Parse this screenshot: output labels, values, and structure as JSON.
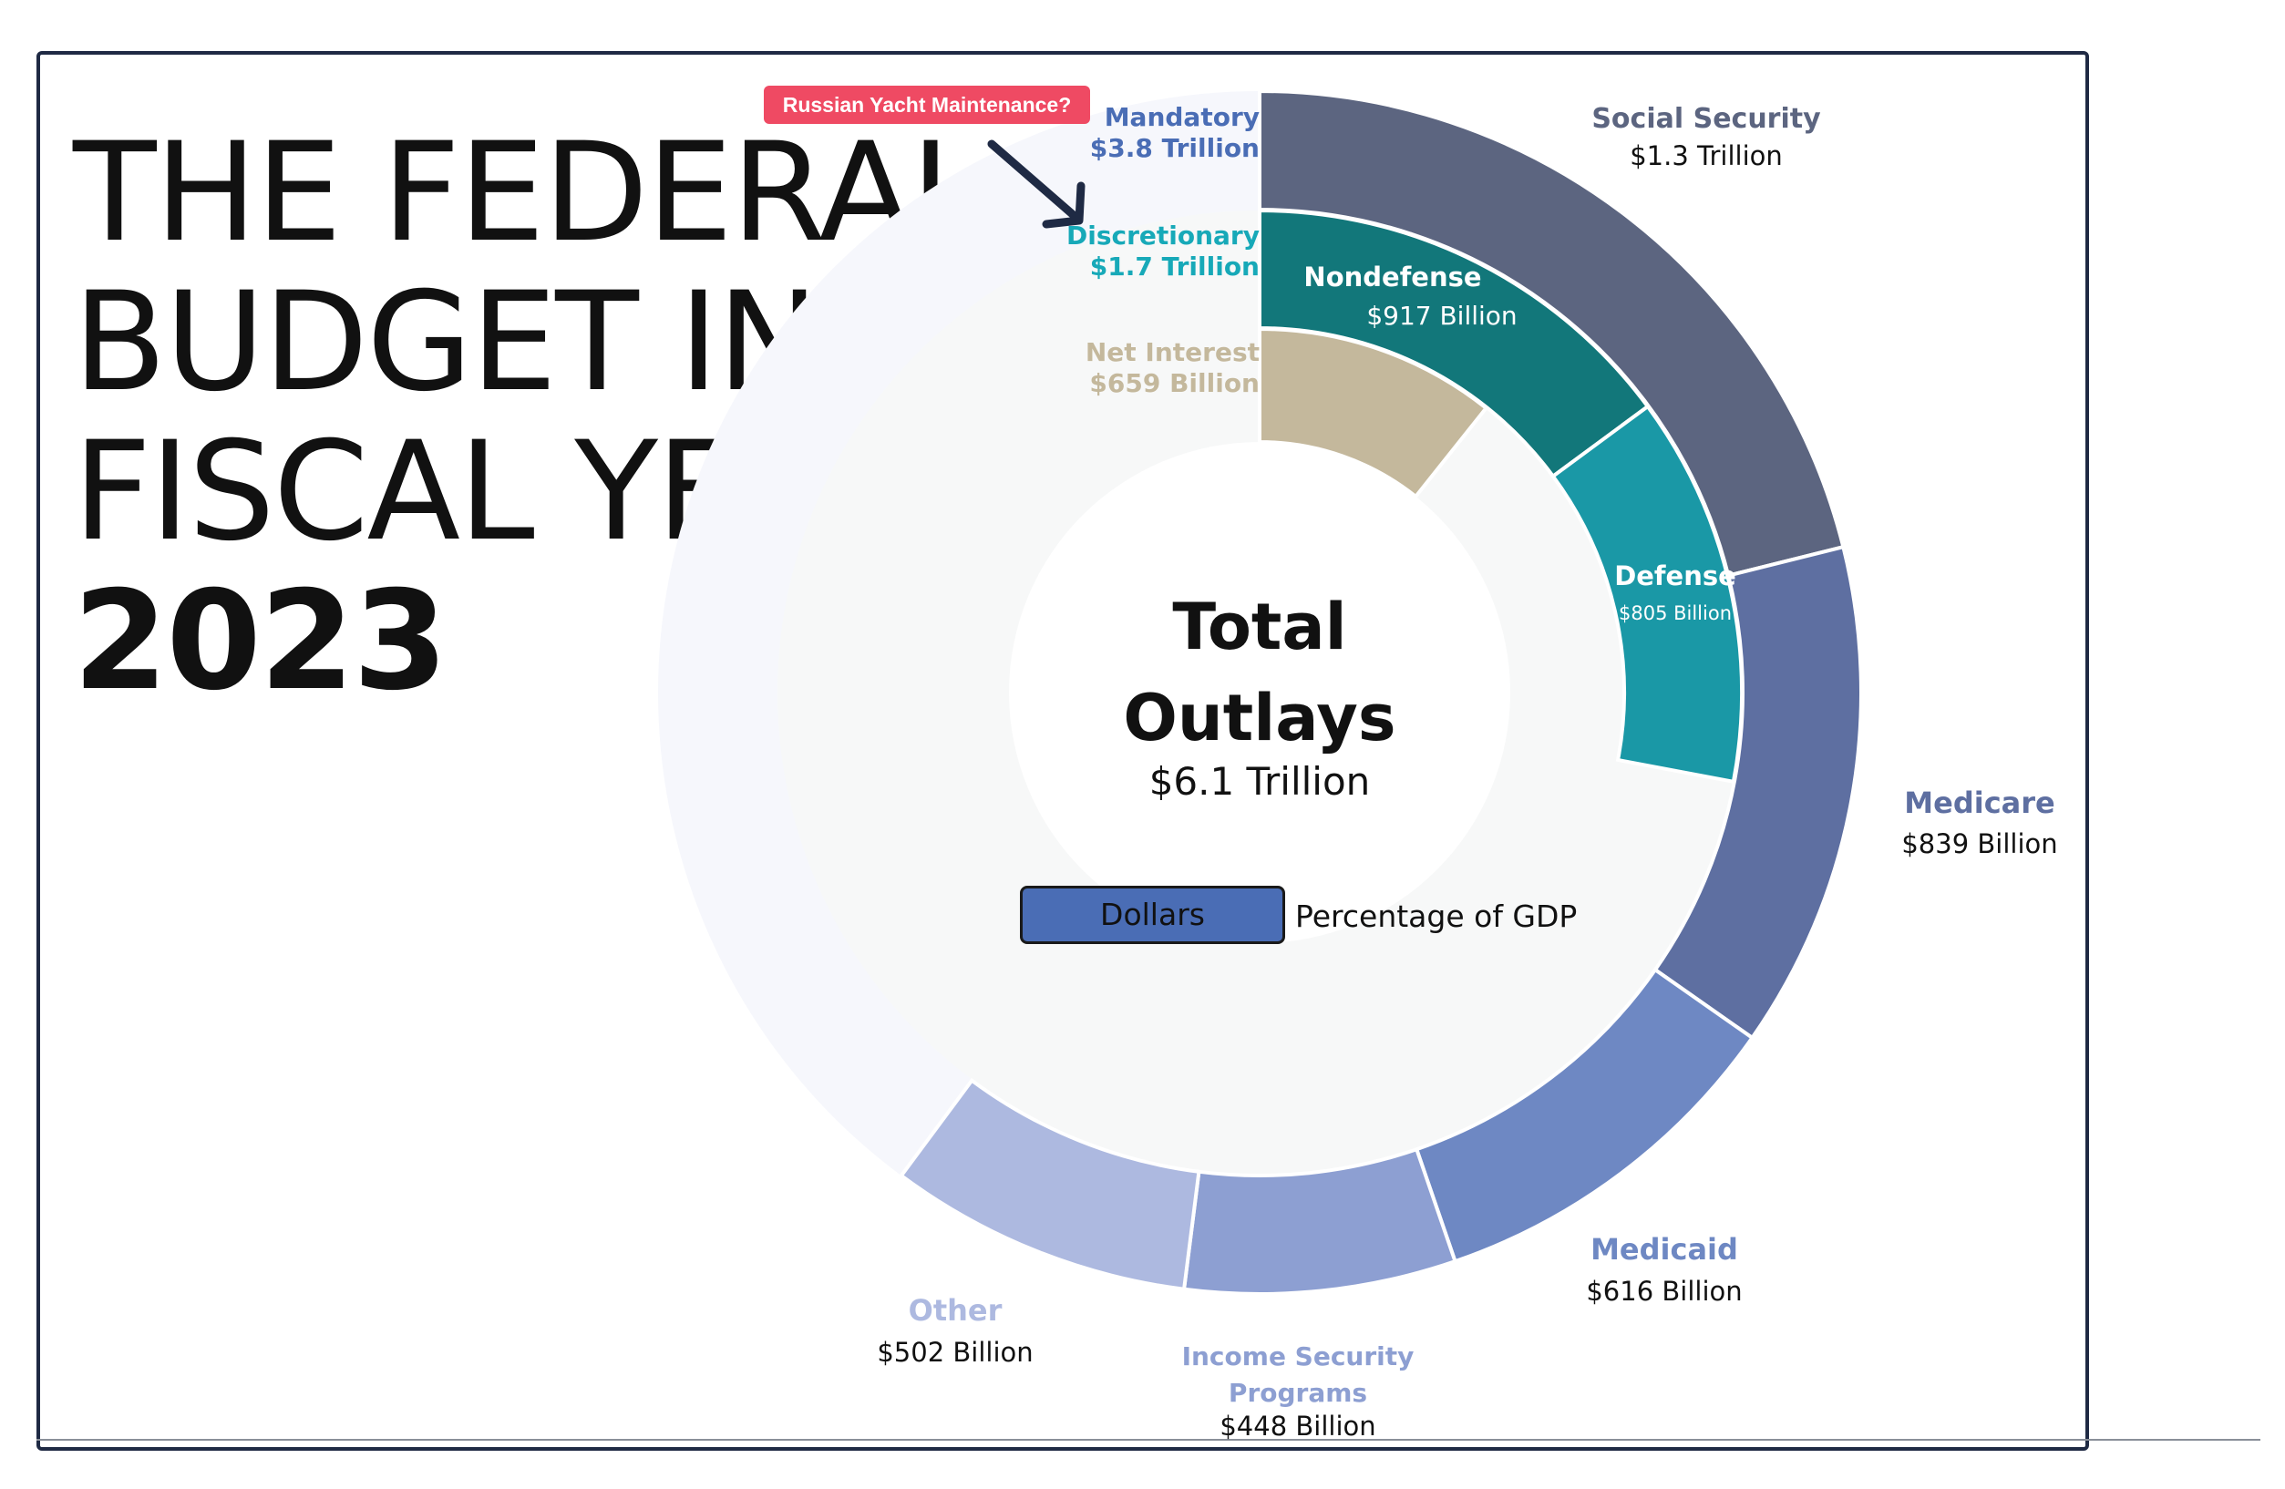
{
  "title": {
    "lines": [
      "THE FEDERAL",
      "BUDGET IN",
      "FISCAL YEAR"
    ],
    "year": "2023"
  },
  "annotation": {
    "callout": "Russian Yacht Maintenance?",
    "arrow_color": "#1f2a44",
    "callout_color": "#ef4a63"
  },
  "center": {
    "title_line1": "Total",
    "title_line2": "Outlays",
    "value": "$6.1 Trillion"
  },
  "toggle": {
    "active_label": "Dollars",
    "inactive_label": "Percentage of GDP",
    "active_color": "#4a6db5"
  },
  "chart_data": {
    "type": "sunburst",
    "total": {
      "label": "Total Outlays",
      "value_trillion": 6.1
    },
    "inner_ring": [
      {
        "name": "Mandatory",
        "value_label": "$3.8 Trillion",
        "value_billion": 3800,
        "color": "#4a6db5"
      },
      {
        "name": "Discretionary",
        "value_label": "$1.7 Trillion",
        "value_billion": 1700,
        "color": "#17a9b8"
      },
      {
        "name": "Net Interest",
        "value_label": "$659 Billion",
        "value_billion": 659,
        "color": "#c4b89c"
      }
    ],
    "outer_ring": [
      {
        "name": "Social Security",
        "parent": "Mandatory",
        "value_label": "$1.3 Trillion",
        "value_billion": 1300,
        "color": "#5c6580"
      },
      {
        "name": "Medicare",
        "parent": "Mandatory",
        "value_label": "$839 Billion",
        "value_billion": 839,
        "color": "#5e6fa1"
      },
      {
        "name": "Medicaid",
        "parent": "Mandatory",
        "value_label": "$616 Billion",
        "value_billion": 616,
        "color": "#6e88c3"
      },
      {
        "name": "Income Security Programs",
        "parent": "Mandatory",
        "value_label": "$448 Billion",
        "value_billion": 448,
        "color": "#8d9fd2"
      },
      {
        "name": "Other",
        "parent": "Mandatory",
        "value_label": "$502 Billion",
        "value_billion": 502,
        "color": "#adb9e0"
      }
    ],
    "middle_ring": [
      {
        "name": "Nondefense",
        "parent": "Discretionary",
        "value_label": "$917 Billion",
        "value_billion": 917,
        "color": "#12777a"
      },
      {
        "name": "Defense",
        "parent": "Discretionary",
        "value_label": "$805 Billion",
        "value_billion": 805,
        "color": "#1a98a6"
      }
    ],
    "ghost_colors": {
      "outer": "#f6f7fc",
      "inner": "#f7f8f8"
    }
  }
}
